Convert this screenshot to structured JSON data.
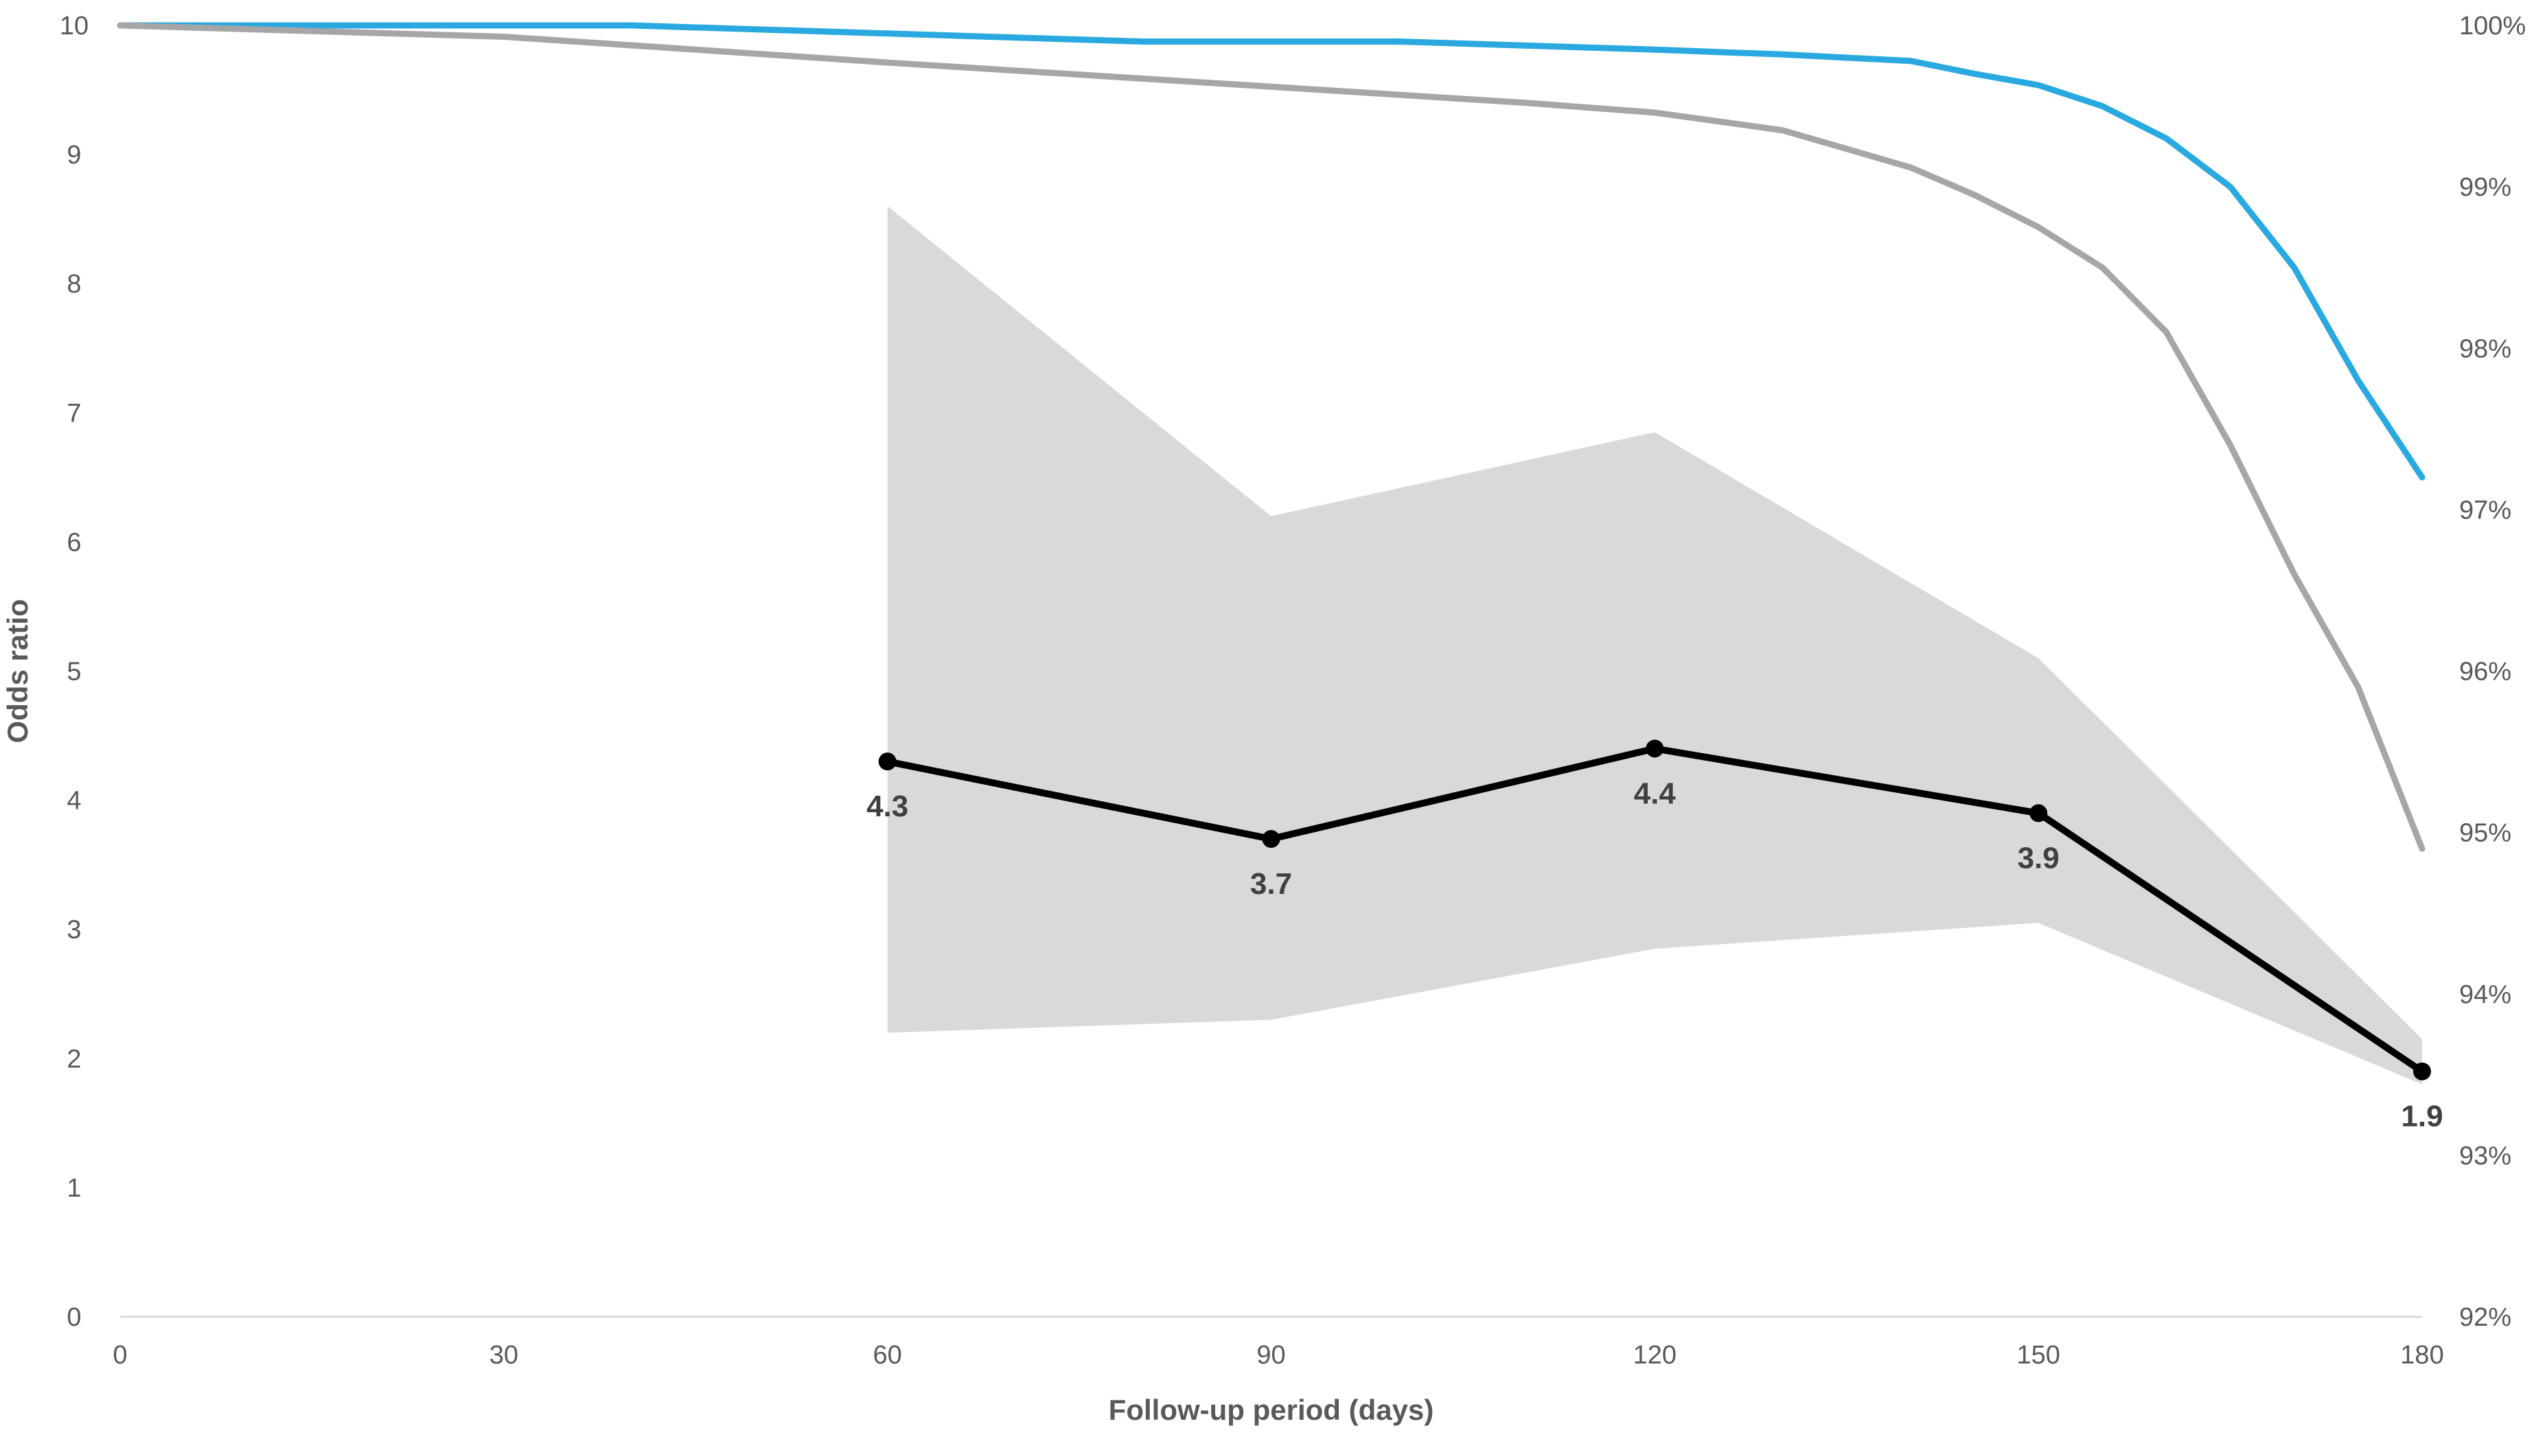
{
  "chart_data": {
    "type": "line",
    "xlabel": "Follow-up period (days)",
    "ylabel": "Odds ratio",
    "y2label": "",
    "x_ticks": [
      0,
      30,
      60,
      90,
      120,
      150,
      180
    ],
    "y_ticks": [
      0,
      1,
      2,
      3,
      4,
      5,
      6,
      7,
      8,
      9,
      10
    ],
    "y2_ticks": [
      "92%",
      "93%",
      "94%",
      "95%",
      "96%",
      "97%",
      "98%",
      "99%",
      "100%"
    ],
    "xlim": [
      0,
      180
    ],
    "ylim": [
      0,
      10
    ],
    "y2lim": [
      92,
      100
    ],
    "grid": false,
    "legend": "none",
    "odds_ratio": {
      "x": [
        60,
        90,
        120,
        150,
        180
      ],
      "values": [
        4.3,
        3.7,
        4.4,
        3.9,
        1.9
      ],
      "labels": [
        "4.3",
        "3.7",
        "4.4",
        "3.9",
        "1.9"
      ],
      "color": "#000000"
    },
    "confidence_band": {
      "x": [
        60,
        90,
        120,
        150,
        180
      ],
      "lower": [
        2.2,
        2.3,
        2.85,
        3.05,
        1.8
      ],
      "upper": [
        8.6,
        6.2,
        6.85,
        5.1,
        2.15
      ],
      "color": "#d9d9d9"
    },
    "survival_series": [
      {
        "axis": "right",
        "color": "#29a9e0",
        "x": [
          0,
          20,
          40,
          60,
          80,
          100,
          120,
          130,
          140,
          145,
          150,
          155,
          160,
          165,
          170,
          175,
          180
        ],
        "y": [
          100,
          100,
          100,
          99.95,
          99.9,
          99.9,
          99.85,
          99.82,
          99.78,
          99.7,
          99.63,
          99.5,
          99.3,
          99.0,
          98.5,
          97.8,
          97.2
        ]
      },
      {
        "axis": "right",
        "color": "#a6a6a6",
        "x": [
          0,
          30,
          60,
          90,
          110,
          120,
          130,
          140,
          145,
          150,
          155,
          160,
          165,
          170,
          175,
          180
        ],
        "y": [
          100,
          99.93,
          99.77,
          99.62,
          99.52,
          99.46,
          99.35,
          99.12,
          98.95,
          98.75,
          98.5,
          98.1,
          97.4,
          96.6,
          95.9,
          94.9
        ]
      }
    ],
    "colors": {
      "tick_text": "#595959",
      "axis_line": "#d9d9d9"
    }
  }
}
